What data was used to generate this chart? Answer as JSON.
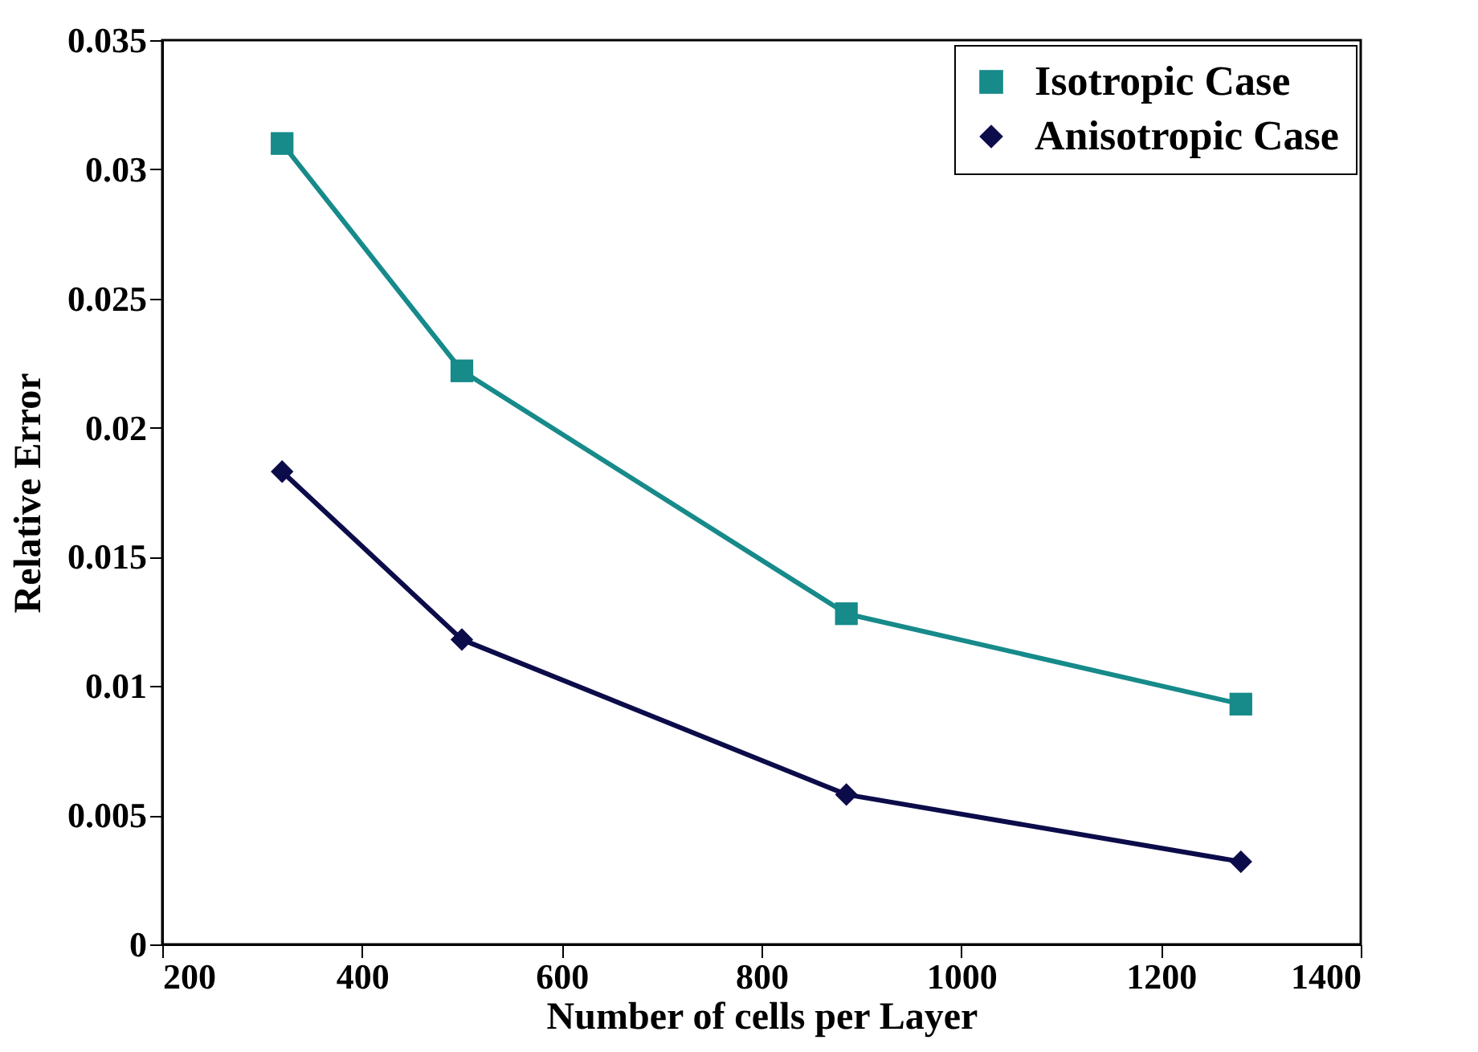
{
  "chart_data": {
    "type": "line",
    "xlabel": "Number of cells per Layer",
    "ylabel": "Relative Error",
    "x": [
      320,
      500,
      885,
      1280
    ],
    "series": [
      {
        "name": "Isotropic Case",
        "color": "#178a8a",
        "marker": "square",
        "values": [
          0.031,
          0.0222,
          0.0128,
          0.0093
        ]
      },
      {
        "name": "Anisotropic Case",
        "color": "#0c0c4a",
        "marker": "diamond",
        "values": [
          0.0183,
          0.0118,
          0.0058,
          0.0032
        ]
      }
    ],
    "xlim": [
      200,
      1400
    ],
    "xticks": [
      200,
      400,
      600,
      800,
      1000,
      1200,
      1400
    ],
    "ylim": [
      0,
      0.035
    ],
    "yticks": [
      0,
      0.005,
      0.01,
      0.015,
      0.02,
      0.025,
      0.03,
      0.035
    ],
    "grid": false,
    "legend": "top right",
    "line_style": "solid"
  }
}
